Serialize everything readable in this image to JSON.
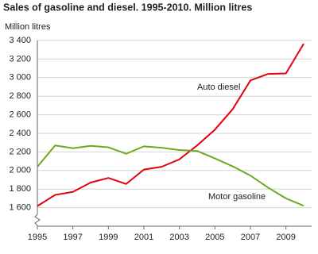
{
  "chart_data": {
    "type": "line",
    "title": "Sales of gasoline and diesel. 1995-2010. Million litres",
    "y_label": "Million litres",
    "x": [
      1995,
      1996,
      1997,
      1998,
      1999,
      2000,
      2001,
      2002,
      2003,
      2004,
      2005,
      2006,
      2007,
      2008,
      2009,
      2010
    ],
    "series": [
      {
        "name": "Auto diesel",
        "color": "#e3000f",
        "values": [
          1617,
          1737,
          1770,
          1870,
          1920,
          1855,
          2010,
          2040,
          2120,
          2270,
          2440,
          2660,
          2970,
          3040,
          3045,
          3365
        ]
      },
      {
        "name": "Motor gasoline",
        "color": "#6aaa1e",
        "values": [
          2040,
          2270,
          2240,
          2265,
          2250,
          2180,
          2260,
          2245,
          2220,
          2210,
          2130,
          2045,
          1945,
          1815,
          1700,
          1620
        ]
      }
    ],
    "xlim": [
      1995,
      2010
    ],
    "xticks": [
      1995,
      1997,
      1999,
      2001,
      2003,
      2005,
      2007,
      2009
    ],
    "ylim": [
      1400,
      3400
    ],
    "yticks": [
      {
        "value": 1600,
        "label": "1 600"
      },
      {
        "value": 1800,
        "label": "1 800"
      },
      {
        "value": 2000,
        "label": "2 000"
      },
      {
        "value": 2200,
        "label": "2 200"
      },
      {
        "value": 2400,
        "label": "2 400"
      },
      {
        "value": 2600,
        "label": "2 600"
      },
      {
        "value": 2800,
        "label": "2 800"
      },
      {
        "value": 3000,
        "label": "3 000"
      },
      {
        "value": 3200,
        "label": "3 200"
      },
      {
        "value": 3400,
        "label": "3 400"
      }
    ],
    "grid": true
  }
}
